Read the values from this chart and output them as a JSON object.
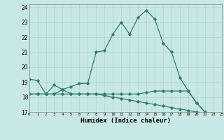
{
  "xlabel": "Humidex (Indice chaleur)",
  "x_values": [
    0,
    1,
    2,
    3,
    4,
    5,
    6,
    7,
    8,
    9,
    10,
    11,
    12,
    13,
    14,
    15,
    16,
    17,
    18,
    19,
    20,
    21,
    22,
    23
  ],
  "line1": [
    19.2,
    19.1,
    18.2,
    18.2,
    18.5,
    18.7,
    18.9,
    18.9,
    21.0,
    21.1,
    22.2,
    23.0,
    22.2,
    23.3,
    23.8,
    23.2,
    21.6,
    21.0,
    19.3,
    18.4,
    17.6,
    17.0,
    16.8,
    16.8
  ],
  "line2": [
    18.2,
    18.2,
    18.2,
    18.8,
    18.5,
    18.2,
    18.2,
    18.2,
    18.2,
    18.2,
    18.2,
    18.2,
    18.2,
    18.2,
    18.3,
    18.4,
    18.4,
    18.4,
    18.4,
    18.4,
    17.6,
    17.0,
    16.8,
    16.7
  ],
  "line3": [
    18.2,
    18.2,
    18.2,
    18.2,
    18.2,
    18.2,
    18.2,
    18.2,
    18.2,
    18.1,
    18.0,
    17.9,
    17.8,
    17.7,
    17.6,
    17.5,
    17.4,
    17.3,
    17.2,
    17.1,
    17.0,
    16.9,
    16.8,
    16.7
  ],
  "line_color": "#2e7d6e",
  "background_color": "#c8e8e5",
  "grid_color": "#aed4d0",
  "xlim": [
    0,
    23
  ],
  "ylim": [
    17.0,
    24.2
  ],
  "yticks": [
    17,
    18,
    19,
    20,
    21,
    22,
    23,
    24
  ],
  "xticks": [
    0,
    1,
    2,
    3,
    4,
    5,
    6,
    7,
    8,
    9,
    10,
    11,
    12,
    13,
    14,
    15,
    16,
    17,
    18,
    19,
    20,
    21,
    22,
    23
  ]
}
